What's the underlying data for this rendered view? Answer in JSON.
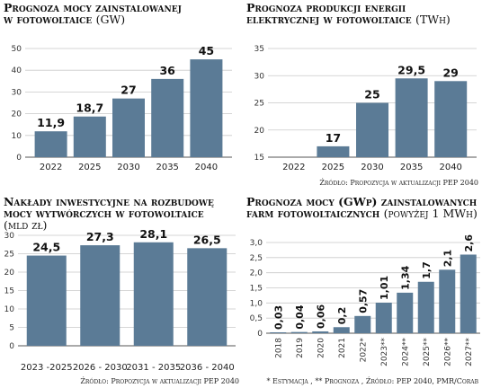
{
  "charts": [
    {
      "title1": "Prognoza mocy zainstalowanej",
      "title2": "w fotowoltaice",
      "unit": "(GW)",
      "source": ""
    },
    {
      "title1": "Prognoza produkcji energii",
      "title2": "elektrycznej w fotowoltaice",
      "unit": "(TWh)",
      "source": "Źródło: Propozycja w aktualizacji PEP 2040"
    },
    {
      "title1": "Nakłady inwestycyjne na rozbudowę",
      "title2": "mocy wytwórczych w fotowoltaice",
      "unit": "(mld zł)",
      "source": "Źródło: Propozycja w aktualizacji PEP 2040"
    },
    {
      "title1": "Prognoza mocy (GWp) zainstalowanych",
      "title2": "farm fotowoltaicznych",
      "unit": "(powyżej 1 MWh)",
      "source": "* Estymacja , ** Prognoza , Źródło: PEP 2040, PMR/Corab"
    }
  ],
  "chart_data": [
    {
      "type": "bar",
      "categories": [
        "2022",
        "2025",
        "2030",
        "2035",
        "2040"
      ],
      "values": [
        11.9,
        18.7,
        27,
        36,
        45
      ],
      "value_labels": [
        "11,9",
        "18,7",
        "27",
        "36",
        "45"
      ],
      "yticks": [
        "0",
        "10",
        "20",
        "30",
        "40",
        "50"
      ],
      "ylim": [
        0,
        50
      ],
      "grid": true,
      "color": "#5b7b96"
    },
    {
      "type": "bar",
      "categories": [
        "2022",
        "2025",
        "2030",
        "2035",
        "2040"
      ],
      "values": [
        null,
        17,
        25,
        29.5,
        29
      ],
      "value_labels": [
        "",
        "17",
        "25",
        "29,5",
        "29"
      ],
      "yticks": [
        "15",
        "20",
        "25",
        "30",
        "35"
      ],
      "ylim": [
        15,
        35
      ],
      "grid": true,
      "color": "#5b7b96"
    },
    {
      "type": "bar",
      "categories": [
        "2023 -2025",
        "2026 - 2030",
        "2031 - 2035",
        "2036 - 2040"
      ],
      "values": [
        24.5,
        27.3,
        28.1,
        26.5
      ],
      "value_labels": [
        "24,5",
        "27,3",
        "28,1",
        "26,5"
      ],
      "yticks": [
        "0",
        "5",
        "10",
        "15",
        "20",
        "25",
        "30"
      ],
      "ylim": [
        0,
        30
      ],
      "grid": true,
      "color": "#5b7b96"
    },
    {
      "type": "bar",
      "categories": [
        "2018",
        "2019",
        "2020",
        "2021",
        "2022*",
        "2023**",
        "2024**",
        "2025**",
        "2026**",
        "2027**"
      ],
      "values": [
        0.03,
        0.04,
        0.06,
        0.2,
        0.57,
        1.01,
        1.34,
        1.7,
        2.1,
        2.6
      ],
      "value_labels": [
        "0,03",
        "0,04",
        "0,06",
        "0,2",
        "0,57",
        "1,01",
        "1,34",
        "1,7",
        "2,1",
        "2,6"
      ],
      "yticks": [
        "0",
        "0,5",
        "1,0",
        "1,5",
        "2,0",
        "2,5",
        "3,0"
      ],
      "ylim": [
        0,
        3
      ],
      "grid": true,
      "color": "#5b7b96"
    }
  ]
}
